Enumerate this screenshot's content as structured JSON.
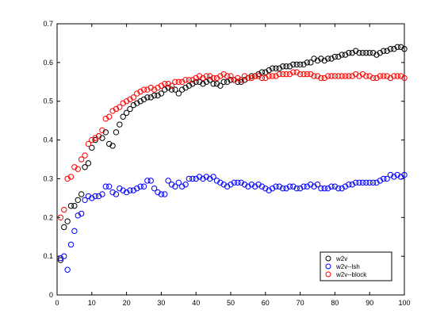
{
  "chart_data": {
    "type": "scatter",
    "title": "",
    "xlabel": "",
    "ylabel": "",
    "xlim": [
      0,
      100
    ],
    "ylim": [
      0,
      0.7
    ],
    "xticks": [
      0,
      10,
      20,
      30,
      40,
      50,
      60,
      70,
      80,
      90,
      100
    ],
    "yticks": [
      0,
      0.1,
      0.2,
      0.3,
      0.4,
      0.5,
      0.6,
      0.7
    ],
    "grid": false,
    "legend_position": "bottom-right",
    "marker": "open-circle",
    "series": [
      {
        "name": "w2v",
        "color": "#000000",
        "x": [
          1,
          2,
          3,
          4,
          5,
          6,
          7,
          8,
          9,
          10,
          11,
          12,
          13,
          14,
          15,
          16,
          17,
          18,
          19,
          20,
          21,
          22,
          23,
          24,
          25,
          26,
          27,
          28,
          29,
          30,
          31,
          32,
          33,
          34,
          35,
          36,
          37,
          38,
          39,
          40,
          41,
          42,
          43,
          44,
          45,
          46,
          47,
          48,
          49,
          50,
          51,
          52,
          53,
          54,
          55,
          56,
          57,
          58,
          59,
          60,
          61,
          62,
          63,
          64,
          65,
          66,
          67,
          68,
          69,
          70,
          71,
          72,
          73,
          74,
          75,
          76,
          77,
          78,
          79,
          80,
          81,
          82,
          83,
          84,
          85,
          86,
          87,
          88,
          89,
          90,
          91,
          92,
          93,
          94,
          95,
          96,
          97,
          98,
          99,
          100
        ],
        "y": [
          0.09,
          0.175,
          0.19,
          0.23,
          0.23,
          0.245,
          0.26,
          0.33,
          0.34,
          0.38,
          0.4,
          0.41,
          0.405,
          0.42,
          0.39,
          0.385,
          0.42,
          0.44,
          0.46,
          0.47,
          0.48,
          0.49,
          0.495,
          0.5,
          0.505,
          0.51,
          0.51,
          0.515,
          0.515,
          0.52,
          0.53,
          0.535,
          0.53,
          0.53,
          0.52,
          0.53,
          0.535,
          0.54,
          0.545,
          0.55,
          0.55,
          0.545,
          0.55,
          0.555,
          0.545,
          0.545,
          0.54,
          0.55,
          0.55,
          0.555,
          0.555,
          0.55,
          0.55,
          0.555,
          0.56,
          0.565,
          0.565,
          0.57,
          0.575,
          0.575,
          0.58,
          0.585,
          0.585,
          0.585,
          0.59,
          0.59,
          0.59,
          0.595,
          0.595,
          0.595,
          0.595,
          0.6,
          0.6,
          0.61,
          0.605,
          0.61,
          0.605,
          0.61,
          0.61,
          0.615,
          0.615,
          0.62,
          0.62,
          0.625,
          0.625,
          0.63,
          0.625,
          0.625,
          0.625,
          0.625,
          0.625,
          0.62,
          0.625,
          0.63,
          0.63,
          0.635,
          0.635,
          0.64,
          0.64,
          0.635
        ]
      },
      {
        "name": "w2v--lsh",
        "color": "#0000ff",
        "x": [
          1,
          2,
          3,
          4,
          5,
          6,
          7,
          8,
          9,
          10,
          11,
          12,
          13,
          14,
          15,
          16,
          17,
          18,
          19,
          20,
          21,
          22,
          23,
          24,
          25,
          26,
          27,
          28,
          29,
          30,
          31,
          32,
          33,
          34,
          35,
          36,
          37,
          38,
          39,
          40,
          41,
          42,
          43,
          44,
          45,
          46,
          47,
          48,
          49,
          50,
          51,
          52,
          53,
          54,
          55,
          56,
          57,
          58,
          59,
          60,
          61,
          62,
          63,
          64,
          65,
          66,
          67,
          68,
          69,
          70,
          71,
          72,
          73,
          74,
          75,
          76,
          77,
          78,
          79,
          80,
          81,
          82,
          83,
          84,
          85,
          86,
          87,
          88,
          89,
          90,
          91,
          92,
          93,
          94,
          95,
          96,
          97,
          98,
          99,
          100
        ],
        "y": [
          0.095,
          0.1,
          0.065,
          0.13,
          0.165,
          0.205,
          0.21,
          0.245,
          0.255,
          0.25,
          0.255,
          0.255,
          0.26,
          0.28,
          0.28,
          0.265,
          0.26,
          0.275,
          0.27,
          0.265,
          0.27,
          0.27,
          0.275,
          0.28,
          0.28,
          0.295,
          0.295,
          0.275,
          0.265,
          0.26,
          0.26,
          0.295,
          0.285,
          0.28,
          0.29,
          0.28,
          0.285,
          0.3,
          0.3,
          0.3,
          0.305,
          0.3,
          0.305,
          0.3,
          0.305,
          0.295,
          0.29,
          0.285,
          0.28,
          0.285,
          0.29,
          0.29,
          0.29,
          0.285,
          0.28,
          0.285,
          0.28,
          0.285,
          0.28,
          0.275,
          0.27,
          0.275,
          0.28,
          0.28,
          0.275,
          0.275,
          0.28,
          0.28,
          0.275,
          0.275,
          0.28,
          0.28,
          0.285,
          0.28,
          0.285,
          0.275,
          0.275,
          0.275,
          0.28,
          0.28,
          0.275,
          0.275,
          0.28,
          0.285,
          0.285,
          0.29,
          0.29,
          0.29,
          0.29,
          0.29,
          0.29,
          0.29,
          0.295,
          0.3,
          0.3,
          0.31,
          0.305,
          0.31,
          0.305,
          0.31
        ]
      },
      {
        "name": "w2v--block",
        "color": "#ff0000",
        "x": [
          1,
          2,
          3,
          4,
          5,
          6,
          7,
          8,
          9,
          10,
          11,
          12,
          13,
          14,
          15,
          16,
          17,
          18,
          19,
          20,
          21,
          22,
          23,
          24,
          25,
          26,
          27,
          28,
          29,
          30,
          31,
          32,
          33,
          34,
          35,
          36,
          37,
          38,
          39,
          40,
          41,
          42,
          43,
          44,
          45,
          46,
          47,
          48,
          49,
          50,
          51,
          52,
          53,
          54,
          55,
          56,
          57,
          58,
          59,
          60,
          61,
          62,
          63,
          64,
          65,
          66,
          67,
          68,
          69,
          70,
          71,
          72,
          73,
          74,
          75,
          76,
          77,
          78,
          79,
          80,
          81,
          82,
          83,
          84,
          85,
          86,
          87,
          88,
          89,
          90,
          91,
          92,
          93,
          94,
          95,
          96,
          97,
          98,
          99,
          100
        ],
        "y": [
          0.2,
          0.22,
          0.3,
          0.305,
          0.33,
          0.325,
          0.35,
          0.36,
          0.39,
          0.4,
          0.405,
          0.41,
          0.425,
          0.455,
          0.46,
          0.475,
          0.48,
          0.485,
          0.495,
          0.5,
          0.505,
          0.51,
          0.52,
          0.525,
          0.53,
          0.53,
          0.535,
          0.53,
          0.535,
          0.54,
          0.545,
          0.545,
          0.54,
          0.55,
          0.55,
          0.55,
          0.555,
          0.555,
          0.555,
          0.56,
          0.565,
          0.56,
          0.565,
          0.565,
          0.56,
          0.56,
          0.565,
          0.57,
          0.565,
          0.565,
          0.555,
          0.56,
          0.555,
          0.565,
          0.56,
          0.56,
          0.565,
          0.565,
          0.56,
          0.56,
          0.565,
          0.565,
          0.565,
          0.57,
          0.57,
          0.57,
          0.57,
          0.575,
          0.575,
          0.57,
          0.57,
          0.57,
          0.57,
          0.565,
          0.565,
          0.56,
          0.56,
          0.565,
          0.565,
          0.565,
          0.565,
          0.565,
          0.565,
          0.565,
          0.565,
          0.57,
          0.565,
          0.57,
          0.565,
          0.565,
          0.56,
          0.56,
          0.565,
          0.565,
          0.565,
          0.56,
          0.565,
          0.565,
          0.565,
          0.56
        ]
      }
    ]
  }
}
